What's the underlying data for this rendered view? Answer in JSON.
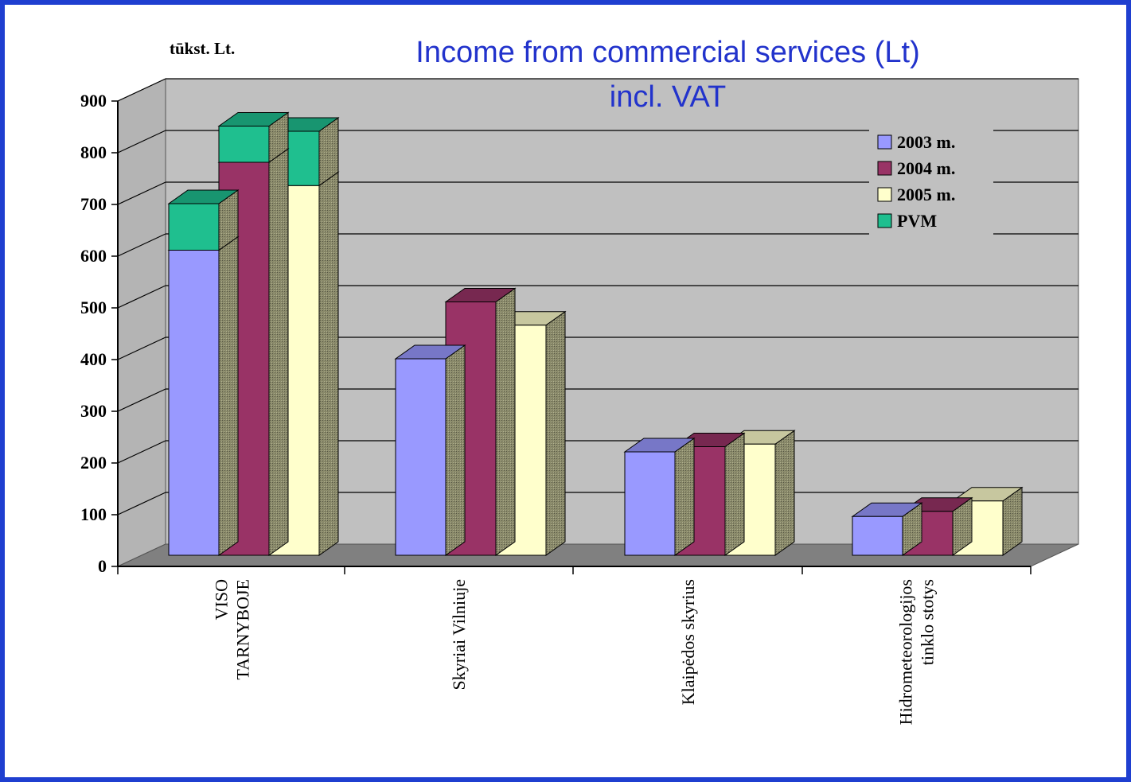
{
  "chart_data": {
    "type": "bar",
    "stacked": true,
    "three_d": true,
    "title": [
      "Income from commercial services (Lt)",
      "incl. VAT"
    ],
    "unit_label": "tūkst. Lt.",
    "categories": [
      [
        "VISO",
        "TARNYBOJE"
      ],
      [
        "Skyriai Vilniuje"
      ],
      [
        "Klaipėdos skyrius"
      ],
      [
        "Hidrometeorologijos",
        "tinklo stotys"
      ]
    ],
    "years": [
      {
        "name": "2003 m.",
        "color": "#9999ff",
        "values": [
          590,
          380,
          200,
          75
        ],
        "pvm": [
          90,
          0,
          0,
          0
        ]
      },
      {
        "name": "2004 m.",
        "color": "#993366",
        "values": [
          760,
          490,
          210,
          85
        ],
        "pvm": [
          70,
          0,
          0,
          0
        ]
      },
      {
        "name": "2005 m.",
        "color": "#ffffcc",
        "values": [
          715,
          445,
          215,
          105
        ],
        "pvm": [
          105,
          0,
          0,
          0
        ]
      }
    ],
    "pvm_series": {
      "name": "PVM",
      "color": "#1fbf8f"
    },
    "legend_order": [
      "2003 m.",
      "2004 m.",
      "2005 m.",
      "PVM"
    ],
    "ylim": [
      0,
      900
    ],
    "yticks": [
      0,
      100,
      200,
      300,
      400,
      500,
      600,
      700,
      800,
      900
    ],
    "grid": true,
    "legend_position": "top-right",
    "colors": {
      "wall": "#c0c0c0",
      "floor": "#808080",
      "gridline": "#000000",
      "title": "#2233cc",
      "frame": "#1f3fd0"
    }
  }
}
